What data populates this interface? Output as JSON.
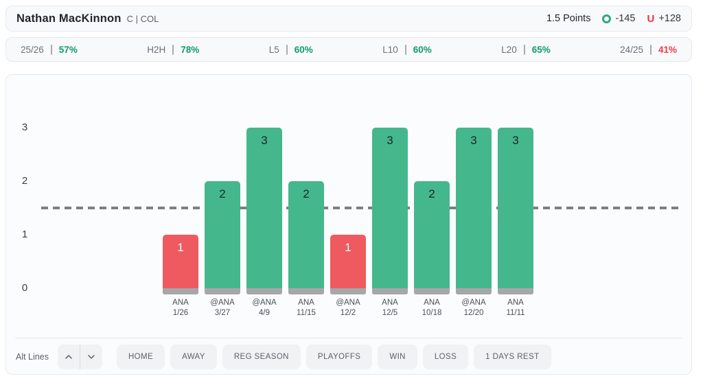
{
  "header": {
    "player_name": "Nathan MacKinnon",
    "position_team": "C | COL",
    "line_label": "1.5 Points",
    "over_odds": "-145",
    "under_letter": "U",
    "under_odds": "+128"
  },
  "stats": [
    {
      "label": "25/26",
      "value": "57%",
      "status": "positive"
    },
    {
      "label": "H2H",
      "value": "78%",
      "status": "positive"
    },
    {
      "label": "L5",
      "value": "60%",
      "status": "positive"
    },
    {
      "label": "L10",
      "value": "60%",
      "status": "positive"
    },
    {
      "label": "L20",
      "value": "65%",
      "status": "positive"
    },
    {
      "label": "24/25",
      "value": "41%",
      "status": "negative"
    }
  ],
  "chart_data": {
    "type": "bar",
    "title": "",
    "xlabel": "",
    "ylabel": "",
    "categories": [
      "ANA 1/26",
      "@ANA 3/27",
      "@ANA 4/9",
      "ANA 11/15",
      "@ANA 12/2",
      "ANA 12/5",
      "ANA 10/18",
      "@ANA 12/20",
      "ANA 11/11"
    ],
    "values": [
      1,
      2,
      3,
      2,
      1,
      3,
      2,
      3,
      3
    ],
    "games": [
      {
        "opponent": "ANA",
        "date": "1/26",
        "value": 1
      },
      {
        "opponent": "@ANA",
        "date": "3/27",
        "value": 2
      },
      {
        "opponent": "@ANA",
        "date": "4/9",
        "value": 3
      },
      {
        "opponent": "ANA",
        "date": "11/15",
        "value": 2
      },
      {
        "opponent": "@ANA",
        "date": "12/2",
        "value": 1
      },
      {
        "opponent": "ANA",
        "date": "12/5",
        "value": 3
      },
      {
        "opponent": "ANA",
        "date": "10/18",
        "value": 2
      },
      {
        "opponent": "@ANA",
        "date": "12/20",
        "value": 3
      },
      {
        "opponent": "ANA",
        "date": "11/11",
        "value": 3
      }
    ],
    "threshold": 1.5,
    "yticks": [
      0,
      1,
      2,
      3
    ],
    "ylim": [
      0,
      3.5
    ],
    "grid": false,
    "legend_position": "none"
  },
  "controls": {
    "alt_lines_label": "Alt Lines",
    "buttons": [
      "HOME",
      "AWAY",
      "REG SEASON",
      "PLAYOFFS",
      "WIN",
      "LOSS",
      "1 DAYS REST"
    ]
  },
  "colors": {
    "over_bar": "#45b78c",
    "under_bar": "#ee5a5f",
    "bar_base": "#a7a7a9",
    "threshold_line": "#7e7f83",
    "positive": "#0f9b68",
    "negative": "#f13c47",
    "over_icon": "#2fa87e",
    "under_icon": "#e6353f"
  }
}
